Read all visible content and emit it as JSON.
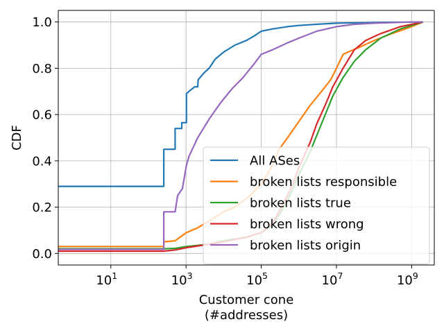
{
  "chart_data": {
    "type": "line",
    "title": "",
    "xlabel_lines": [
      "Customer cone",
      "(#addresses)"
    ],
    "ylabel": "CDF",
    "xscale": "log",
    "xlim": [
      0.4,
      4000000000
    ],
    "ylim": [
      -0.05,
      1.05
    ],
    "grid": true,
    "legend_position": "lower right",
    "xticks": [
      {
        "value": 10,
        "base": "10",
        "exp": "1"
      },
      {
        "value": 1000,
        "base": "10",
        "exp": "3"
      },
      {
        "value": 100000,
        "base": "10",
        "exp": "5"
      },
      {
        "value": 10000000,
        "base": "10",
        "exp": "7"
      },
      {
        "value": 1000000000,
        "base": "10",
        "exp": "9"
      }
    ],
    "yticks": [
      {
        "value": 0.0,
        "label": "0.0"
      },
      {
        "value": 0.2,
        "label": "0.2"
      },
      {
        "value": 0.4,
        "label": "0.4"
      },
      {
        "value": 0.6,
        "label": "0.6"
      },
      {
        "value": 0.8,
        "label": "0.8"
      },
      {
        "value": 1.0,
        "label": "1.0"
      }
    ],
    "series": [
      {
        "name": "All ASes",
        "color": "#1f77b4",
        "points": [
          [
            0.4,
            0.29
          ],
          [
            256,
            0.29
          ],
          [
            256,
            0.45
          ],
          [
            512,
            0.45
          ],
          [
            512,
            0.54
          ],
          [
            768,
            0.54
          ],
          [
            768,
            0.565
          ],
          [
            1024,
            0.565
          ],
          [
            1024,
            0.69
          ],
          [
            1300,
            0.705
          ],
          [
            1700,
            0.72
          ],
          [
            2048,
            0.72
          ],
          [
            2100,
            0.75
          ],
          [
            3000,
            0.78
          ],
          [
            4096,
            0.8
          ],
          [
            6000,
            0.84
          ],
          [
            10000,
            0.87
          ],
          [
            20000,
            0.9
          ],
          [
            40000,
            0.92
          ],
          [
            65536,
            0.94
          ],
          [
            100000,
            0.96
          ],
          [
            200000,
            0.97
          ],
          [
            500000,
            0.98
          ],
          [
            1000000,
            0.985
          ],
          [
            3000000,
            0.99
          ],
          [
            10000000,
            0.995
          ],
          [
            100000000,
            0.998
          ],
          [
            2000000000,
            1.0
          ]
        ]
      },
      {
        "name": "broken lists responsible",
        "color": "#ff7f0e",
        "points": [
          [
            0.4,
            0.03
          ],
          [
            256,
            0.03
          ],
          [
            256,
            0.05
          ],
          [
            512,
            0.055
          ],
          [
            1024,
            0.09
          ],
          [
            2000,
            0.11
          ],
          [
            4096,
            0.14
          ],
          [
            10000,
            0.18
          ],
          [
            20000,
            0.2
          ],
          [
            50000,
            0.25
          ],
          [
            100000,
            0.3
          ],
          [
            200000,
            0.38
          ],
          [
            300000,
            0.45
          ],
          [
            500000,
            0.5
          ],
          [
            1000000,
            0.57
          ],
          [
            2000000,
            0.64
          ],
          [
            4000000,
            0.7
          ],
          [
            7000000,
            0.75
          ],
          [
            10000000,
            0.8
          ],
          [
            15000000,
            0.86
          ],
          [
            20000000,
            0.87
          ],
          [
            40000000,
            0.89
          ],
          [
            100000000,
            0.92
          ],
          [
            300000000,
            0.95
          ],
          [
            1000000000,
            0.98
          ],
          [
            2000000000,
            1.0
          ]
        ]
      },
      {
        "name": "broken lists true",
        "color": "#2ca02c",
        "points": [
          [
            0.4,
            0.02
          ],
          [
            256,
            0.02
          ],
          [
            512,
            0.022
          ],
          [
            1024,
            0.03
          ],
          [
            4096,
            0.04
          ],
          [
            10000,
            0.055
          ],
          [
            40000,
            0.07
          ],
          [
            100000,
            0.09
          ],
          [
            200000,
            0.12
          ],
          [
            400000,
            0.2
          ],
          [
            700000,
            0.28
          ],
          [
            1000000,
            0.34
          ],
          [
            2000000,
            0.44
          ],
          [
            4000000,
            0.56
          ],
          [
            8000000,
            0.68
          ],
          [
            15000000,
            0.76
          ],
          [
            30000000,
            0.83
          ],
          [
            60000000,
            0.88
          ],
          [
            150000000,
            0.93
          ],
          [
            500000000,
            0.97
          ],
          [
            2000000000,
            1.0
          ]
        ]
      },
      {
        "name": "broken lists wrong",
        "color": "#d62728",
        "points": [
          [
            0.4,
            0.01
          ],
          [
            256,
            0.01
          ],
          [
            512,
            0.015
          ],
          [
            1024,
            0.025
          ],
          [
            4096,
            0.04
          ],
          [
            10000,
            0.05
          ],
          [
            40000,
            0.07
          ],
          [
            100000,
            0.09
          ],
          [
            200000,
            0.13
          ],
          [
            400000,
            0.22
          ],
          [
            700000,
            0.3
          ],
          [
            1000000,
            0.37
          ],
          [
            2000000,
            0.48
          ],
          [
            3000000,
            0.56
          ],
          [
            5000000,
            0.64
          ],
          [
            8000000,
            0.72
          ],
          [
            15000000,
            0.8
          ],
          [
            30000000,
            0.88
          ],
          [
            60000000,
            0.92
          ],
          [
            150000000,
            0.95
          ],
          [
            500000000,
            0.98
          ],
          [
            2000000000,
            1.0
          ]
        ]
      },
      {
        "name": "broken lists origin",
        "color": "#9467bd",
        "points": [
          [
            0.4,
            0.018
          ],
          [
            256,
            0.018
          ],
          [
            256,
            0.18
          ],
          [
            512,
            0.18
          ],
          [
            600,
            0.25
          ],
          [
            800,
            0.28
          ],
          [
            1024,
            0.38
          ],
          [
            1200,
            0.42
          ],
          [
            2048,
            0.5
          ],
          [
            4096,
            0.58
          ],
          [
            8192,
            0.65
          ],
          [
            16384,
            0.71
          ],
          [
            32768,
            0.76
          ],
          [
            65536,
            0.82
          ],
          [
            100000,
            0.86
          ],
          [
            200000,
            0.88
          ],
          [
            500000,
            0.91
          ],
          [
            1000000,
            0.93
          ],
          [
            3000000,
            0.96
          ],
          [
            10000000,
            0.98
          ],
          [
            30000000,
            0.99
          ],
          [
            100000000,
            0.995
          ],
          [
            1000000000,
            1.0
          ],
          [
            2000000000,
            1.0
          ]
        ]
      }
    ]
  }
}
